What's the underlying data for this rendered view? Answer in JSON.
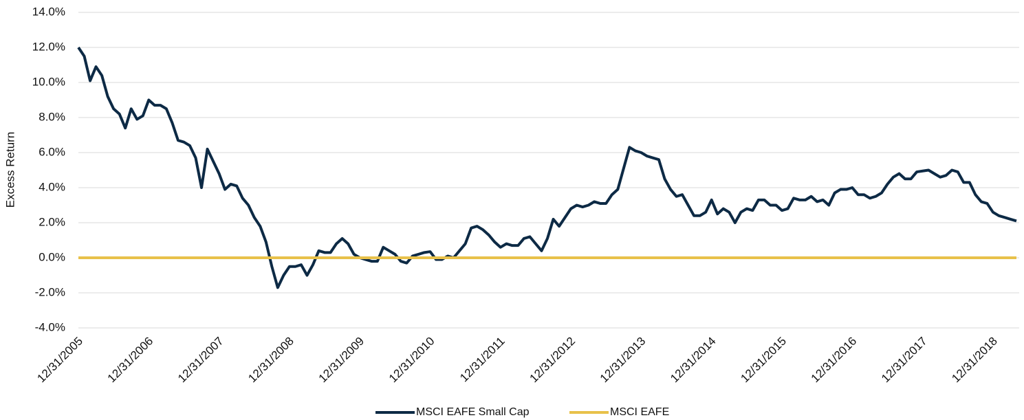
{
  "chart_data": {
    "type": "line",
    "y_label": "Excess Return",
    "categories": [
      "12/31/2005",
      null,
      null,
      null,
      null,
      null,
      null,
      null,
      null,
      null,
      null,
      null,
      "12/31/2006",
      null,
      null,
      null,
      null,
      null,
      null,
      null,
      null,
      null,
      null,
      null,
      "12/31/2007",
      null,
      null,
      null,
      null,
      null,
      null,
      null,
      null,
      null,
      null,
      null,
      "12/31/2008",
      null,
      null,
      null,
      null,
      null,
      null,
      null,
      null,
      null,
      null,
      null,
      "12/31/2009",
      null,
      null,
      null,
      null,
      null,
      null,
      null,
      null,
      null,
      null,
      null,
      "12/31/2010",
      null,
      null,
      null,
      null,
      null,
      null,
      null,
      null,
      null,
      null,
      null,
      "12/31/2011",
      null,
      null,
      null,
      null,
      null,
      null,
      null,
      null,
      null,
      null,
      null,
      "12/31/2012",
      null,
      null,
      null,
      null,
      null,
      null,
      null,
      null,
      null,
      null,
      null,
      "12/31/2013",
      null,
      null,
      null,
      null,
      null,
      null,
      null,
      null,
      null,
      null,
      null,
      "12/31/2014",
      null,
      null,
      null,
      null,
      null,
      null,
      null,
      null,
      null,
      null,
      null,
      "12/31/2015",
      null,
      null,
      null,
      null,
      null,
      null,
      null,
      null,
      null,
      null,
      null,
      "12/31/2016",
      null,
      null,
      null,
      null,
      null,
      null,
      null,
      null,
      null,
      null,
      null,
      "12/31/2017",
      null,
      null,
      null,
      null,
      null,
      null,
      null,
      null,
      null,
      null,
      null,
      "12/31/2018",
      null,
      null,
      null,
      null
    ],
    "series": [
      {
        "name": "MSCI EAFE Small Cap",
        "color": "#0d2a45",
        "values": [
          12.0,
          11.5,
          10.1,
          10.9,
          10.4,
          9.2,
          8.5,
          8.2,
          7.4,
          8.5,
          7.9,
          8.1,
          9.0,
          8.7,
          8.7,
          8.5,
          7.7,
          6.7,
          6.6,
          6.4,
          5.7,
          4.0,
          6.2,
          5.5,
          4.8,
          3.9,
          4.2,
          4.1,
          3.4,
          3.0,
          2.3,
          1.8,
          0.9,
          -0.5,
          -1.7,
          -1.0,
          -0.5,
          -0.5,
          -0.4,
          -1.0,
          -0.4,
          0.4,
          0.3,
          0.3,
          0.8,
          1.1,
          0.8,
          0.2,
          0.0,
          -0.1,
          -0.2,
          -0.2,
          0.6,
          0.4,
          0.2,
          -0.2,
          -0.3,
          0.1,
          0.2,
          0.3,
          0.35,
          -0.1,
          -0.1,
          0.1,
          0.0,
          0.4,
          0.8,
          1.7,
          1.8,
          1.6,
          1.3,
          0.9,
          0.6,
          0.8,
          0.7,
          0.7,
          1.1,
          1.2,
          0.8,
          0.4,
          1.1,
          2.2,
          1.8,
          2.3,
          2.8,
          3.0,
          2.9,
          3.0,
          3.2,
          3.1,
          3.1,
          3.6,
          3.9,
          5.1,
          6.3,
          6.1,
          6.0,
          5.8,
          5.7,
          5.6,
          4.5,
          3.9,
          3.5,
          3.6,
          3.0,
          2.4,
          2.4,
          2.6,
          3.3,
          2.5,
          2.8,
          2.6,
          2.0,
          2.6,
          2.8,
          2.7,
          3.3,
          3.3,
          3.0,
          3.0,
          2.7,
          2.8,
          3.4,
          3.3,
          3.3,
          3.5,
          3.2,
          3.3,
          3.0,
          3.7,
          3.9,
          3.9,
          4.0,
          3.6,
          3.6,
          3.4,
          3.5,
          3.7,
          4.2,
          4.6,
          4.8,
          4.5,
          4.5,
          4.9,
          4.95,
          5.0,
          4.8,
          4.6,
          4.7,
          5.0,
          4.9,
          4.3,
          4.3,
          3.6,
          3.2,
          3.1,
          2.6,
          2.4,
          2.3,
          2.2,
          2.1
        ]
      },
      {
        "name": "MSCI EAFE",
        "color": "#e8c14a",
        "values": [
          0,
          0,
          0,
          0,
          0,
          0,
          0,
          0,
          0,
          0,
          0,
          0,
          0,
          0,
          0,
          0,
          0,
          0,
          0,
          0,
          0,
          0,
          0,
          0,
          0,
          0,
          0,
          0,
          0,
          0,
          0,
          0,
          0,
          0,
          0,
          0,
          0,
          0,
          0,
          0,
          0,
          0,
          0,
          0,
          0,
          0,
          0,
          0,
          0,
          0,
          0,
          0,
          0,
          0,
          0,
          0,
          0,
          0,
          0,
          0,
          0,
          0,
          0,
          0,
          0,
          0,
          0,
          0,
          0,
          0,
          0,
          0,
          0,
          0,
          0,
          0,
          0,
          0,
          0,
          0,
          0,
          0,
          0,
          0,
          0,
          0,
          0,
          0,
          0,
          0,
          0,
          0,
          0,
          0,
          0,
          0,
          0,
          0,
          0,
          0,
          0,
          0,
          0,
          0,
          0,
          0,
          0,
          0,
          0,
          0,
          0,
          0,
          0,
          0,
          0,
          0,
          0,
          0,
          0,
          0,
          0,
          0,
          0,
          0,
          0,
          0,
          0,
          0,
          0,
          0,
          0,
          0,
          0,
          0,
          0,
          0,
          0,
          0,
          0,
          0,
          0,
          0,
          0,
          0,
          0,
          0,
          0,
          0,
          0,
          0,
          0,
          0,
          0,
          0,
          0,
          0,
          0,
          0,
          0,
          0,
          0
        ]
      }
    ],
    "ylim": [
      -4,
      14
    ],
    "yticks": [
      {
        "value": -4,
        "label": "-4.0%"
      },
      {
        "value": -2,
        "label": "-2.0%"
      },
      {
        "value": 0,
        "label": "0.0%"
      },
      {
        "value": 2,
        "label": "2.0%"
      },
      {
        "value": 4,
        "label": "4.0%"
      },
      {
        "value": 6,
        "label": "6.0%"
      },
      {
        "value": 8,
        "label": "8.0%"
      },
      {
        "value": 10,
        "label": "10.0%"
      },
      {
        "value": 12,
        "label": "12.0%"
      },
      {
        "value": 14,
        "label": "14.0%"
      }
    ],
    "grid": true,
    "legend": "bottom"
  }
}
